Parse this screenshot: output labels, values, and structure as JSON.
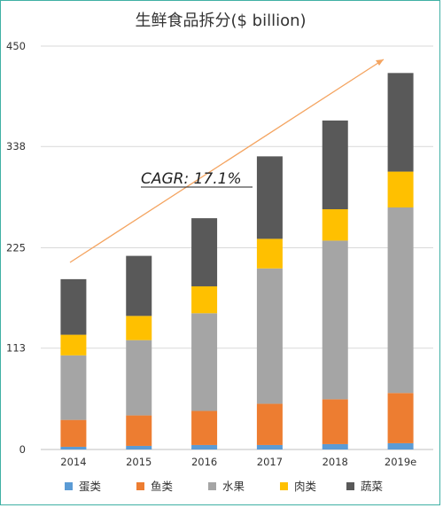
{
  "chart_data": {
    "type": "bar",
    "stacked": true,
    "title": "生鲜食品拆分($ billion)",
    "categories": [
      "2014",
      "2015",
      "2016",
      "2017",
      "2018",
      "2019e"
    ],
    "series": [
      {
        "name": "蛋类",
        "color": "#5b9bd5",
        "values": [
          3,
          4,
          5,
          5,
          6,
          7
        ]
      },
      {
        "name": "鱼类",
        "color": "#ed7d31",
        "values": [
          30,
          34,
          38,
          46,
          50,
          56
        ]
      },
      {
        "name": "水果",
        "color": "#a5a5a5",
        "values": [
          72,
          84,
          109,
          151,
          177,
          207
        ]
      },
      {
        "name": "肉类",
        "color": "#ffc000",
        "values": [
          23,
          27,
          30,
          33,
          35,
          40
        ]
      },
      {
        "name": "蔬菜",
        "color": "#595959",
        "values": [
          62,
          67,
          76,
          92,
          99,
          110
        ]
      }
    ],
    "y_ticks": [
      "0",
      "113",
      "225",
      "338",
      "450"
    ],
    "ylim": [
      0,
      450
    ],
    "annotation": "CAGR: 17.1%",
    "legend_position": "bottom",
    "grid": true
  }
}
